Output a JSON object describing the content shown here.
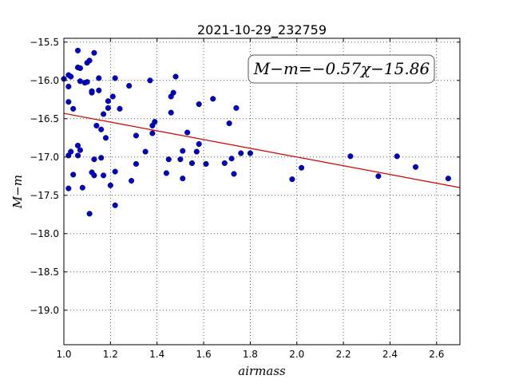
{
  "chart_data": {
    "type": "scatter",
    "title": "2021-10-29_232759",
    "xlabel": "airmass",
    "ylabel": "M−m",
    "xlim": [
      1.0,
      2.7
    ],
    "ylim": [
      -19.45,
      -15.45
    ],
    "y_inverted": true,
    "grid": true,
    "grid_style": "dotted",
    "xticks": [
      "1.0",
      "1.2",
      "1.4",
      "1.6",
      "1.8",
      "2.0",
      "2.2",
      "2.4",
      "2.6"
    ],
    "xtick_values": [
      1.0,
      1.2,
      1.4,
      1.6,
      1.8,
      2.0,
      2.2,
      2.4,
      2.6
    ],
    "yticks": [
      "−15.5",
      "−16.0",
      "−16.5",
      "−17.0",
      "−17.5",
      "−18.0",
      "−18.5",
      "−19.0"
    ],
    "ytick_values": [
      -15.5,
      -16.0,
      -16.5,
      -17.0,
      -17.5,
      -18.0,
      -18.5,
      -19.0
    ],
    "annotation": "M−m=−0.57χ−15.86",
    "fit": {
      "slope": -0.57,
      "intercept": -15.86,
      "x_range": [
        1.0,
        2.7
      ],
      "color": "#cc0000"
    },
    "point_color": "#0000cc",
    "points": [
      [
        1.0,
        -15.98
      ],
      [
        1.02,
        -15.93
      ],
      [
        1.03,
        -15.95
      ],
      [
        1.02,
        -16.08
      ],
      [
        1.02,
        -16.28
      ],
      [
        1.04,
        -16.37
      ],
      [
        1.02,
        -16.98
      ],
      [
        1.03,
        -16.93
      ],
      [
        1.04,
        -17.23
      ],
      [
        1.02,
        -17.41
      ],
      [
        1.06,
        -15.61
      ],
      [
        1.06,
        -15.83
      ],
      [
        1.07,
        -15.84
      ],
      [
        1.07,
        -16.01
      ],
      [
        1.09,
        -16.03
      ],
      [
        1.1,
        -16.02
      ],
      [
        1.1,
        -15.77
      ],
      [
        1.11,
        -15.74
      ],
      [
        1.06,
        -16.85
      ],
      [
        1.06,
        -16.98
      ],
      [
        1.07,
        -16.91
      ],
      [
        1.08,
        -17.4
      ],
      [
        1.11,
        -17.74
      ],
      [
        1.13,
        -15.64
      ],
      [
        1.15,
        -15.97
      ],
      [
        1.15,
        -16.13
      ],
      [
        1.12,
        -16.14
      ],
      [
        1.12,
        -16.16
      ],
      [
        1.14,
        -16.59
      ],
      [
        1.16,
        -16.64
      ],
      [
        1.17,
        -16.44
      ],
      [
        1.13,
        -17.03
      ],
      [
        1.12,
        -17.2
      ],
      [
        1.13,
        -17.24
      ],
      [
        1.16,
        -17.01
      ],
      [
        1.17,
        -17.24
      ],
      [
        1.18,
        -16.75
      ],
      [
        1.19,
        -16.27
      ],
      [
        1.19,
        -16.36
      ],
      [
        1.21,
        -16.21
      ],
      [
        1.22,
        -15.97
      ],
      [
        1.24,
        -16.37
      ],
      [
        1.2,
        -17.37
      ],
      [
        1.22,
        -17.19
      ],
      [
        1.22,
        -17.63
      ],
      [
        1.28,
        -16.07
      ],
      [
        1.31,
        -16.72
      ],
      [
        1.31,
        -17.09
      ],
      [
        1.29,
        -17.31
      ],
      [
        1.35,
        -16.93
      ],
      [
        1.37,
        -16.0
      ],
      [
        1.38,
        -16.59
      ],
      [
        1.39,
        -16.54
      ],
      [
        1.38,
        -16.69
      ],
      [
        1.44,
        -17.21
      ],
      [
        1.45,
        -17.03
      ],
      [
        1.46,
        -16.21
      ],
      [
        1.47,
        -16.16
      ],
      [
        1.46,
        -16.42
      ],
      [
        1.48,
        -15.95
      ],
      [
        1.5,
        -17.03
      ],
      [
        1.51,
        -16.92
      ],
      [
        1.51,
        -17.28
      ],
      [
        1.53,
        -16.68
      ],
      [
        1.55,
        -17.08
      ],
      [
        1.57,
        -16.93
      ],
      [
        1.58,
        -16.83
      ],
      [
        1.58,
        -16.31
      ],
      [
        1.61,
        -17.09
      ],
      [
        1.64,
        -16.24
      ],
      [
        1.69,
        -17.08
      ],
      [
        1.71,
        -16.56
      ],
      [
        1.72,
        -17.02
      ],
      [
        1.73,
        -17.22
      ],
      [
        1.74,
        -16.36
      ],
      [
        1.76,
        -16.95
      ],
      [
        1.8,
        -16.95
      ],
      [
        1.98,
        -17.29
      ],
      [
        2.02,
        -17.14
      ],
      [
        2.23,
        -16.99
      ],
      [
        2.35,
        -17.25
      ],
      [
        2.43,
        -16.99
      ],
      [
        2.51,
        -17.13
      ],
      [
        2.65,
        -17.28
      ]
    ]
  }
}
